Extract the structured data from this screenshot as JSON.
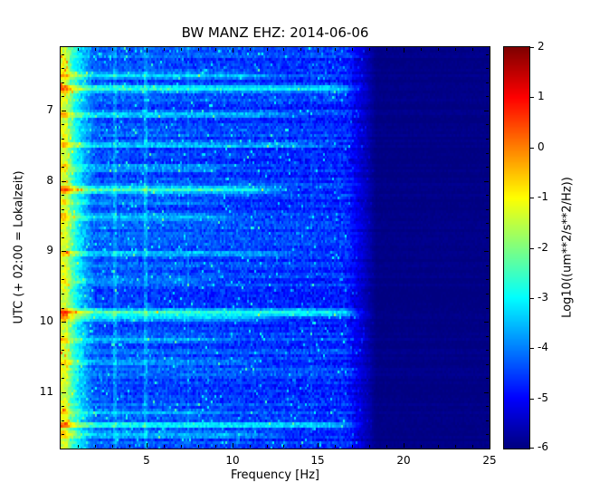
{
  "chart_data": {
    "type": "heatmap",
    "title": "BW MANZ EHZ: 2014-06-06",
    "xlabel": "Frequency [Hz]",
    "ylabel": "UTC (+ 02:00 = Lokalzeit)",
    "colorbar_label": "Log10((um**2/s**2/Hz))",
    "colormap": "jet",
    "x_range": [
      0,
      25
    ],
    "x_ticks": [
      5,
      10,
      15,
      20,
      25
    ],
    "x_minor_step": 1,
    "y_range": [
      6.1,
      11.8
    ],
    "y_ticks": [
      7,
      8,
      9,
      10,
      11
    ],
    "y_minor_step": 0.2,
    "value_range": [
      -6,
      2
    ],
    "colorbar_ticks": [
      2,
      1,
      0,
      -1,
      -2,
      -3,
      -4,
      -5,
      -6
    ],
    "grid": false,
    "spectrogram_model": {
      "body_level": -4.3,
      "freq_slope_per_hz": 0.025,
      "noise_sigma": 0.34,
      "speckle_prob": 0.035,
      "speckle_boost": 1.2,
      "low_freq_edge": {
        "f_end": 0.35,
        "level": -1.3
      },
      "low_freq_transition_end": 2.0,
      "high_freq_cut_start": 16.6,
      "high_freq_cut_end": 18.4,
      "dark_level": -5.95,
      "vertical_lines": [
        {
          "f": 3.2,
          "boost": 0.55,
          "width": 0.1
        },
        {
          "f": 5.0,
          "boost": 0.65,
          "width": 0.1
        },
        {
          "f": 7.45,
          "boost": 0.3,
          "width": 0.09
        },
        {
          "f": 14.6,
          "boost": 0.28,
          "width": 0.09
        }
      ],
      "events": [
        {
          "t": 6.5,
          "fmax": 12.0,
          "boost": 1.0
        },
        {
          "t": 6.69,
          "fmax": 17.2,
          "boost": 1.8
        },
        {
          "t": 7.07,
          "fmax": 13.0,
          "boost": 1.1
        },
        {
          "t": 7.49,
          "fmax": 15.0,
          "boost": 1.2
        },
        {
          "t": 7.81,
          "fmax": 10.0,
          "boost": 0.8
        },
        {
          "t": 8.13,
          "fmax": 12.5,
          "boost": 2.0
        },
        {
          "t": 8.3,
          "fmax": 9.0,
          "boost": 0.7
        },
        {
          "t": 8.52,
          "fmax": 10.0,
          "boost": 0.9
        },
        {
          "t": 9.03,
          "fmax": 13.0,
          "boost": 1.0
        },
        {
          "t": 9.42,
          "fmax": 9.0,
          "boost": 0.7
        },
        {
          "t": 9.87,
          "fmax": 17.4,
          "boost": 2.3
        },
        {
          "t": 9.95,
          "fmax": 12.0,
          "boost": 1.2
        },
        {
          "t": 10.26,
          "fmax": 9.0,
          "boost": 0.7
        },
        {
          "t": 10.58,
          "fmax": 11.0,
          "boost": 0.9
        },
        {
          "t": 11.29,
          "fmax": 9.0,
          "boost": 0.6
        },
        {
          "t": 11.47,
          "fmax": 17.0,
          "boost": 1.9
        },
        {
          "t": 11.6,
          "fmax": 12.0,
          "boost": 1.0
        }
      ]
    }
  }
}
